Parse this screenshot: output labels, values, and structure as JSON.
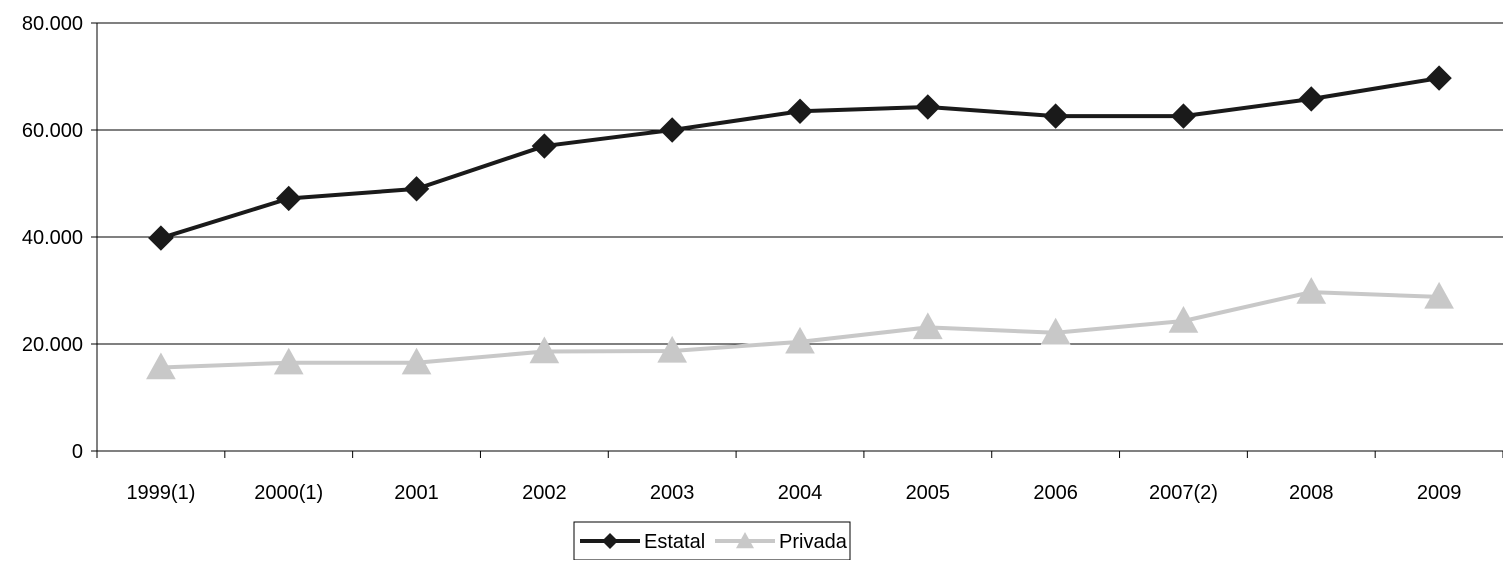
{
  "chart_data": {
    "type": "line",
    "categories": [
      "1999(1)",
      "2000(1)",
      "2001",
      "2002",
      "2003",
      "2004",
      "2005",
      "2006",
      "2007(2)",
      "2008",
      "2009"
    ],
    "series": [
      {
        "name": "Estatal",
        "values": [
          39800,
          47200,
          49000,
          57000,
          60000,
          63500,
          64300,
          62600,
          62600,
          65800,
          69700
        ],
        "color": "#1a1a1a",
        "marker": "diamond"
      },
      {
        "name": "Privada",
        "values": [
          15600,
          16500,
          16500,
          18600,
          18700,
          20400,
          23100,
          22100,
          24300,
          29700,
          28800
        ],
        "color": "#c8c8c8",
        "marker": "triangle"
      }
    ],
    "y_ticks": [
      "0",
      "20.000",
      "40.000",
      "60.000",
      "80.000"
    ],
    "ylim": [
      0,
      80000
    ],
    "y_step": 20000,
    "grid": true,
    "legend_position": "bottom-center"
  }
}
